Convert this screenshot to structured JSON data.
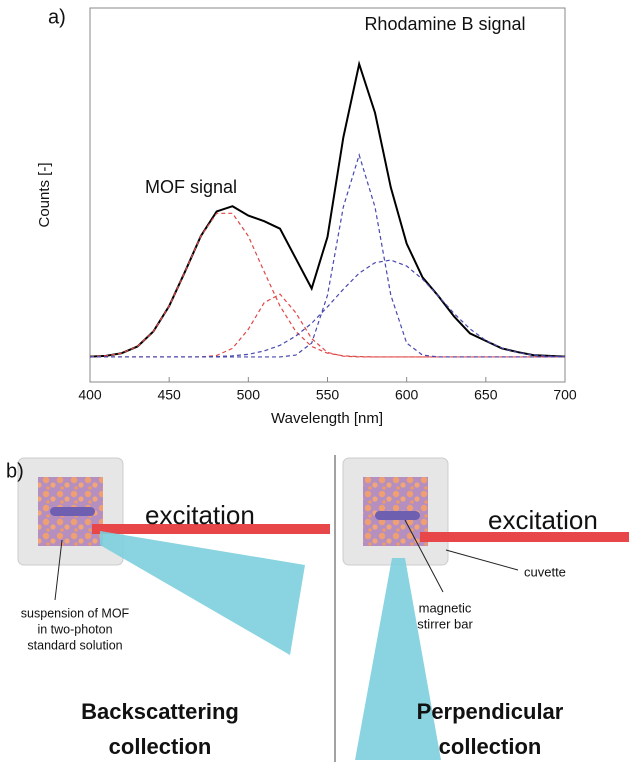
{
  "chart_data": {
    "type": "line",
    "panel_label": "a)",
    "xlabel": "Wavelength [nm]",
    "ylabel": "Counts [-]",
    "annotations": [
      "MOF signal",
      "Rhodamine B signal"
    ],
    "xlim": [
      400,
      700
    ],
    "xticks": [
      400,
      450,
      500,
      550,
      600,
      650,
      700
    ],
    "ylim": [
      0,
      1
    ],
    "x": [
      400,
      410,
      420,
      430,
      440,
      450,
      460,
      470,
      480,
      490,
      500,
      510,
      520,
      530,
      540,
      550,
      560,
      570,
      580,
      590,
      600,
      610,
      620,
      630,
      640,
      650,
      660,
      670,
      680,
      690,
      700
    ],
    "series": [
      {
        "color": "#000000",
        "line_style": "solid",
        "values": [
          0.068,
          0.07,
          0.077,
          0.095,
          0.135,
          0.203,
          0.295,
          0.39,
          0.456,
          0.47,
          0.445,
          0.43,
          0.41,
          0.33,
          0.25,
          0.388,
          0.654,
          0.85,
          0.72,
          0.52,
          0.37,
          0.28,
          0.23,
          0.175,
          0.13,
          0.11,
          0.09,
          0.08,
          0.072,
          0.07,
          0.068
        ]
      },
      {
        "color": "#e04848",
        "line_style": "dashed",
        "values": [
          0.068,
          0.07,
          0.077,
          0.095,
          0.135,
          0.203,
          0.295,
          0.39,
          0.451,
          0.451,
          0.39,
          0.295,
          0.203,
          0.135,
          0.095,
          0.077,
          0.07,
          0.068,
          0.067,
          0.067,
          0.067,
          0.067,
          0.067,
          0.067,
          0.067,
          0.067,
          0.067,
          0.067,
          0.067,
          0.067,
          0.067
        ]
      },
      {
        "color": "#e04848",
        "line_style": "dashed",
        "values": [
          0.067,
          0.067,
          0.067,
          0.067,
          0.067,
          0.067,
          0.067,
          0.067,
          0.071,
          0.09,
          0.141,
          0.212,
          0.235,
          0.185,
          0.116,
          0.079,
          0.069,
          0.067,
          0.067,
          0.067,
          0.067,
          0.067,
          0.067,
          0.067,
          0.067,
          0.067,
          0.067,
          0.067,
          0.067,
          0.067,
          0.067
        ]
      },
      {
        "color": "#4848b0",
        "line_style": "dashed",
        "values": [
          0.067,
          0.067,
          0.067,
          0.067,
          0.067,
          0.067,
          0.067,
          0.067,
          0.067,
          0.067,
          0.067,
          0.067,
          0.067,
          0.072,
          0.104,
          0.232,
          0.468,
          0.607,
          0.468,
          0.232,
          0.104,
          0.072,
          0.067,
          0.067,
          0.067,
          0.067,
          0.067,
          0.067,
          0.067,
          0.067,
          0.067
        ]
      },
      {
        "color": "#4848b0",
        "line_style": "dashed",
        "values": [
          0.067,
          0.067,
          0.067,
          0.067,
          0.067,
          0.067,
          0.067,
          0.067,
          0.068,
          0.07,
          0.074,
          0.083,
          0.098,
          0.123,
          0.157,
          0.201,
          0.248,
          0.291,
          0.319,
          0.326,
          0.31,
          0.275,
          0.23,
          0.183,
          0.142,
          0.111,
          0.091,
          0.079,
          0.072,
          0.069,
          0.068
        ]
      }
    ]
  },
  "diagram": {
    "panel_label": "b)",
    "left": {
      "beam_label": "excitation",
      "sample_label": [
        "suspension of MOF",
        "in two-photon",
        "standard solution"
      ],
      "title": [
        "Backscattering",
        "collection"
      ]
    },
    "right": {
      "beam_label": "excitation",
      "cuvette_label": "cuvette",
      "stirrer_label": [
        "magnetic",
        "stirrer bar"
      ],
      "title": [
        "Perpendicular",
        "collection"
      ]
    }
  }
}
